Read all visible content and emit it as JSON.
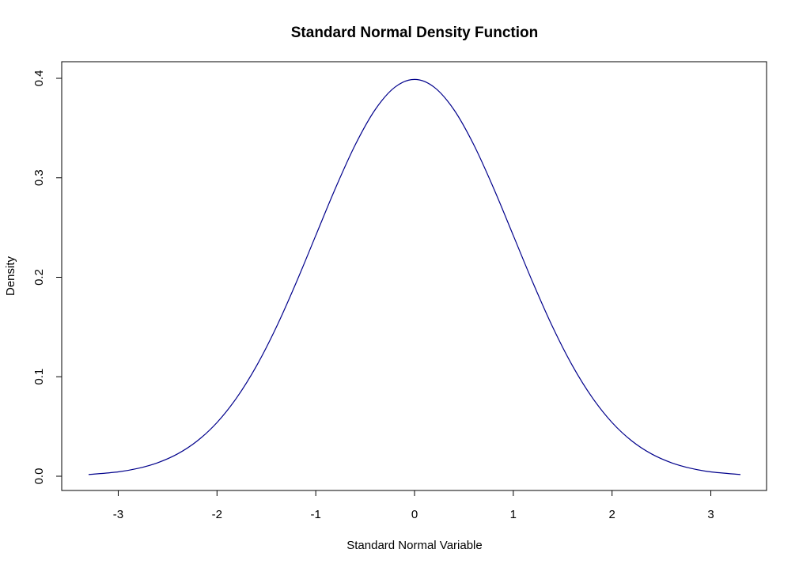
{
  "chart_data": {
    "type": "line",
    "title": "Standard Normal Density Function",
    "xlabel": "Standard Normal Variable",
    "ylabel": "Density",
    "xlim": [
      -3.3,
      3.3
    ],
    "ylim": [
      0.0,
      0.4
    ],
    "x_ticks": [
      -3,
      -2,
      -1,
      0,
      1,
      2,
      3
    ],
    "x_tick_labels": [
      "-3",
      "-2",
      "-1",
      "0",
      "1",
      "2",
      "3"
    ],
    "y_ticks": [
      0.0,
      0.1,
      0.2,
      0.3,
      0.4
    ],
    "y_tick_labels": [
      "0.0",
      "0.1",
      "0.2",
      "0.3",
      "0.4"
    ],
    "grid": false,
    "legend": "none",
    "series": [
      {
        "color": "#00008B",
        "x": [
          -3.3,
          -3.0,
          -2.8,
          -2.6,
          -2.4,
          -2.2,
          -2.0,
          -1.8,
          -1.6,
          -1.4,
          -1.2,
          -1.0,
          -0.8,
          -0.6,
          -0.4,
          -0.2,
          0.0,
          0.2,
          0.4,
          0.6,
          0.8,
          1.0,
          1.2,
          1.4,
          1.6,
          1.8,
          2.0,
          2.2,
          2.4,
          2.6,
          2.8,
          3.0,
          3.3
        ],
        "y": [
          0.0017,
          0.0044,
          0.0079,
          0.0136,
          0.0224,
          0.0355,
          0.054,
          0.079,
          0.1109,
          0.1497,
          0.1942,
          0.242,
          0.2897,
          0.3332,
          0.3683,
          0.391,
          0.3989,
          0.391,
          0.3683,
          0.3332,
          0.2897,
          0.242,
          0.1942,
          0.1497,
          0.1109,
          0.079,
          0.054,
          0.0355,
          0.0224,
          0.0136,
          0.0079,
          0.0044,
          0.0017
        ]
      }
    ]
  }
}
